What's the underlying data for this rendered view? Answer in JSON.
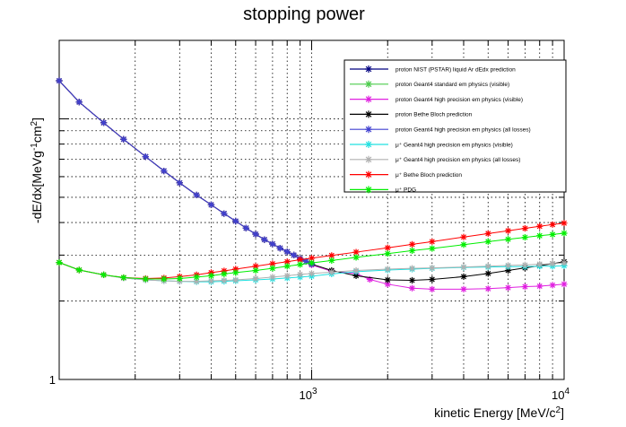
{
  "chart_data": {
    "type": "line",
    "title": "stopping power",
    "xlabel": "kinetic Energy [MeV/c",
    "xlabel_sup": "2",
    "xlabel_end": "]",
    "ylabel": "-dE/dx[MeVg",
    "ylabel_sup1": "-1",
    "ylabel_mid": "cm",
    "ylabel_sup2": "2",
    "ylabel_end": "]",
    "x_scale": "log",
    "y_scale": "log",
    "xlim": [
      100,
      10000
    ],
    "ylim": [
      1,
      20
    ],
    "grid": true,
    "legend_position": "top-right",
    "x_tick_labels": [
      {
        "value": 1000,
        "base": "10",
        "exp": "3"
      },
      {
        "value": 10000,
        "base": "10",
        "exp": "4"
      }
    ],
    "y_tick_labels": [
      {
        "value": 1,
        "text": "1"
      }
    ],
    "series": [
      {
        "name": "proton NIST (PSTAR) liquid Ar dEdx prediction",
        "color": "#000080",
        "x": [
          100,
          120,
          150,
          180,
          220,
          260,
          300,
          350,
          400,
          450,
          500,
          550,
          600,
          650,
          700,
          750,
          800,
          850,
          900,
          950,
          1000
        ],
        "y": [
          14.0,
          11.6,
          9.66,
          8.35,
          7.16,
          6.31,
          5.68,
          5.1,
          4.68,
          4.33,
          4.05,
          3.81,
          3.61,
          3.44,
          3.31,
          3.19,
          3.09,
          3.0,
          2.91,
          2.84,
          2.77
        ]
      },
      {
        "name": "proton Geant4 standard em physics (visible)",
        "color": "#4ccc4c",
        "x": [
          100,
          120,
          150,
          180,
          220,
          260,
          300,
          350,
          400,
          450,
          500,
          550,
          600,
          650,
          700,
          750,
          800,
          850,
          900,
          950,
          1000
        ],
        "y": [
          14.0,
          11.6,
          9.66,
          8.35,
          7.16,
          6.31,
          5.68,
          5.1,
          4.68,
          4.33,
          4.05,
          3.81,
          3.61,
          3.44,
          3.31,
          3.19,
          3.09,
          3.0,
          2.91,
          2.84,
          2.77
        ]
      },
      {
        "name": "proton Geant4 high precision em physics (visible)",
        "color": "#e020e0",
        "x": [
          100,
          120,
          150,
          180,
          220,
          260,
          300,
          350,
          400,
          450,
          500,
          550,
          600,
          650,
          700,
          750,
          800,
          850,
          900,
          1000,
          1200,
          1500,
          1700,
          2000,
          2500,
          3000,
          4000,
          5000,
          6000,
          7000,
          8000,
          9000,
          10000
        ],
        "y": [
          14.0,
          11.6,
          9.66,
          8.35,
          7.16,
          6.31,
          5.68,
          5.1,
          4.68,
          4.33,
          4.05,
          3.81,
          3.61,
          3.44,
          3.31,
          3.19,
          3.09,
          3.0,
          2.91,
          2.75,
          2.6,
          2.55,
          2.42,
          2.32,
          2.24,
          2.22,
          2.22,
          2.23,
          2.25,
          2.27,
          2.28,
          2.3,
          2.32
        ]
      },
      {
        "name": "proton Bethe Bloch prediction",
        "color": "#000000",
        "x": [
          100,
          120,
          150,
          180,
          220,
          260,
          300,
          350,
          400,
          450,
          500,
          550,
          600,
          650,
          700,
          750,
          800,
          850,
          900,
          1000,
          1200,
          1500,
          2000,
          2500,
          3000,
          4000,
          5000,
          6000,
          7000,
          8000,
          9000,
          10000
        ],
        "y": [
          14.0,
          11.6,
          9.66,
          8.35,
          7.16,
          6.31,
          5.68,
          5.1,
          4.68,
          4.33,
          4.05,
          3.81,
          3.61,
          3.44,
          3.31,
          3.19,
          3.09,
          3.0,
          2.91,
          2.77,
          2.62,
          2.5,
          2.41,
          2.4,
          2.42,
          2.48,
          2.55,
          2.62,
          2.68,
          2.73,
          2.78,
          2.83
        ]
      },
      {
        "name": "proton Geant4 high precision em physics (all losses)",
        "color": "#4040d0",
        "x": [
          100,
          120,
          150,
          180,
          220,
          260,
          300,
          350,
          400,
          450,
          500,
          550,
          600,
          650,
          700,
          750,
          800,
          850,
          900,
          950,
          1000
        ],
        "y": [
          14.0,
          11.6,
          9.66,
          8.35,
          7.16,
          6.31,
          5.68,
          5.1,
          4.68,
          4.33,
          4.05,
          3.81,
          3.61,
          3.44,
          3.31,
          3.19,
          3.09,
          3.0,
          2.91,
          2.84,
          2.77
        ]
      },
      {
        "name": "μ⁺ Geant4 high precision em physics (visible)",
        "color": "#20e0e0",
        "x": [
          100,
          120,
          150,
          180,
          220,
          260,
          300,
          350,
          400,
          450,
          500,
          600,
          700,
          800,
          900,
          1000,
          1200,
          1500,
          2000,
          2500,
          3000,
          4000,
          5000,
          6000,
          7000,
          8000,
          9000,
          10000
        ],
        "y": [
          2.81,
          2.63,
          2.52,
          2.45,
          2.41,
          2.39,
          2.38,
          2.37,
          2.37,
          2.38,
          2.39,
          2.41,
          2.43,
          2.45,
          2.47,
          2.49,
          2.54,
          2.59,
          2.63,
          2.65,
          2.67,
          2.69,
          2.7,
          2.71,
          2.71,
          2.72,
          2.72,
          2.73
        ]
      },
      {
        "name": "μ⁺ Geant4 high precision em physics (all losses)",
        "color": "#b0b0b0",
        "x": [
          100,
          120,
          150,
          180,
          220,
          260,
          300,
          350,
          400,
          450,
          500,
          600,
          700,
          800,
          900,
          1000,
          1200,
          1500,
          2000,
          2500,
          3000,
          4000,
          5000,
          6000,
          7000,
          8000,
          9000,
          10000
        ],
        "y": [
          2.81,
          2.63,
          2.52,
          2.45,
          2.41,
          2.39,
          2.38,
          2.38,
          2.39,
          2.4,
          2.41,
          2.44,
          2.47,
          2.5,
          2.53,
          2.55,
          2.58,
          2.62,
          2.65,
          2.67,
          2.68,
          2.7,
          2.72,
          2.74,
          2.75,
          2.77,
          2.78,
          2.8
        ]
      },
      {
        "name": "μ⁺ Bethe Bloch prediction",
        "color": "#ff0000",
        "x": [
          100,
          120,
          150,
          180,
          220,
          260,
          300,
          350,
          400,
          450,
          500,
          600,
          700,
          800,
          900,
          1000,
          1200,
          1500,
          2000,
          2500,
          3000,
          4000,
          5000,
          6000,
          7000,
          8000,
          9000,
          10000
        ],
        "y": [
          2.81,
          2.63,
          2.52,
          2.46,
          2.44,
          2.45,
          2.48,
          2.52,
          2.57,
          2.61,
          2.65,
          2.72,
          2.78,
          2.83,
          2.88,
          2.92,
          2.99,
          3.08,
          3.2,
          3.3,
          3.38,
          3.52,
          3.63,
          3.72,
          3.8,
          3.87,
          3.93,
          3.98
        ]
      },
      {
        "name": "μ⁺ PDG",
        "color": "#00ee00",
        "x": [
          100,
          120,
          150,
          180,
          220,
          260,
          300,
          350,
          400,
          450,
          500,
          600,
          700,
          800,
          900,
          1000,
          1200,
          1500,
          2000,
          2500,
          3000,
          4000,
          5000,
          6000,
          7000,
          8000,
          9000,
          10000
        ],
        "y": [
          2.81,
          2.63,
          2.52,
          2.46,
          2.43,
          2.43,
          2.44,
          2.47,
          2.5,
          2.54,
          2.57,
          2.62,
          2.67,
          2.72,
          2.76,
          2.8,
          2.86,
          2.94,
          3.04,
          3.12,
          3.18,
          3.29,
          3.38,
          3.45,
          3.51,
          3.56,
          3.6,
          3.64
        ]
      }
    ]
  }
}
